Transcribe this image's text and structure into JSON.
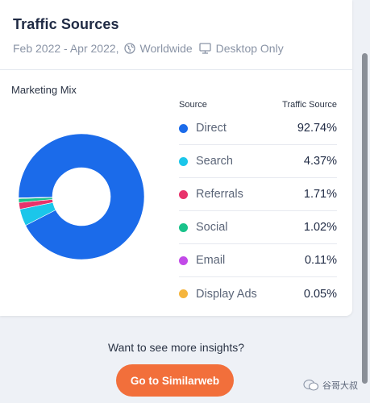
{
  "header": {
    "title": "Traffic Sources",
    "date_range": "Feb 2022 - Apr 2022,",
    "region": "Worldwide",
    "device": "Desktop Only"
  },
  "marketing_mix": {
    "label": "Marketing Mix",
    "column_source": "Source",
    "column_value": "Traffic Source"
  },
  "sources": [
    {
      "name": "Direct",
      "value": "92.74%",
      "color": "#1b6bea"
    },
    {
      "name": "Search",
      "value": "4.37%",
      "color": "#1bc6ea"
    },
    {
      "name": "Referrals",
      "value": "1.71%",
      "color": "#e8336b"
    },
    {
      "name": "Social",
      "value": "1.02%",
      "color": "#19c28a"
    },
    {
      "name": "Email",
      "value": "0.11%",
      "color": "#c24ae8"
    },
    {
      "name": "Display Ads",
      "value": "0.05%",
      "color": "#f5b53d"
    }
  ],
  "chart_data": {
    "type": "pie",
    "categories": [
      "Direct",
      "Search",
      "Referrals",
      "Social",
      "Email",
      "Display Ads"
    ],
    "values": [
      92.74,
      4.37,
      1.71,
      1.02,
      0.11,
      0.05
    ],
    "colors": [
      "#1b6bea",
      "#1bc6ea",
      "#e8336b",
      "#19c28a",
      "#c24ae8",
      "#f5b53d"
    ],
    "title": "Marketing Mix",
    "donut": true
  },
  "cta": {
    "text": "Want to see more insights?",
    "button_label": "Go to Similarweb"
  },
  "watermark": {
    "text": "谷哥大叔"
  }
}
